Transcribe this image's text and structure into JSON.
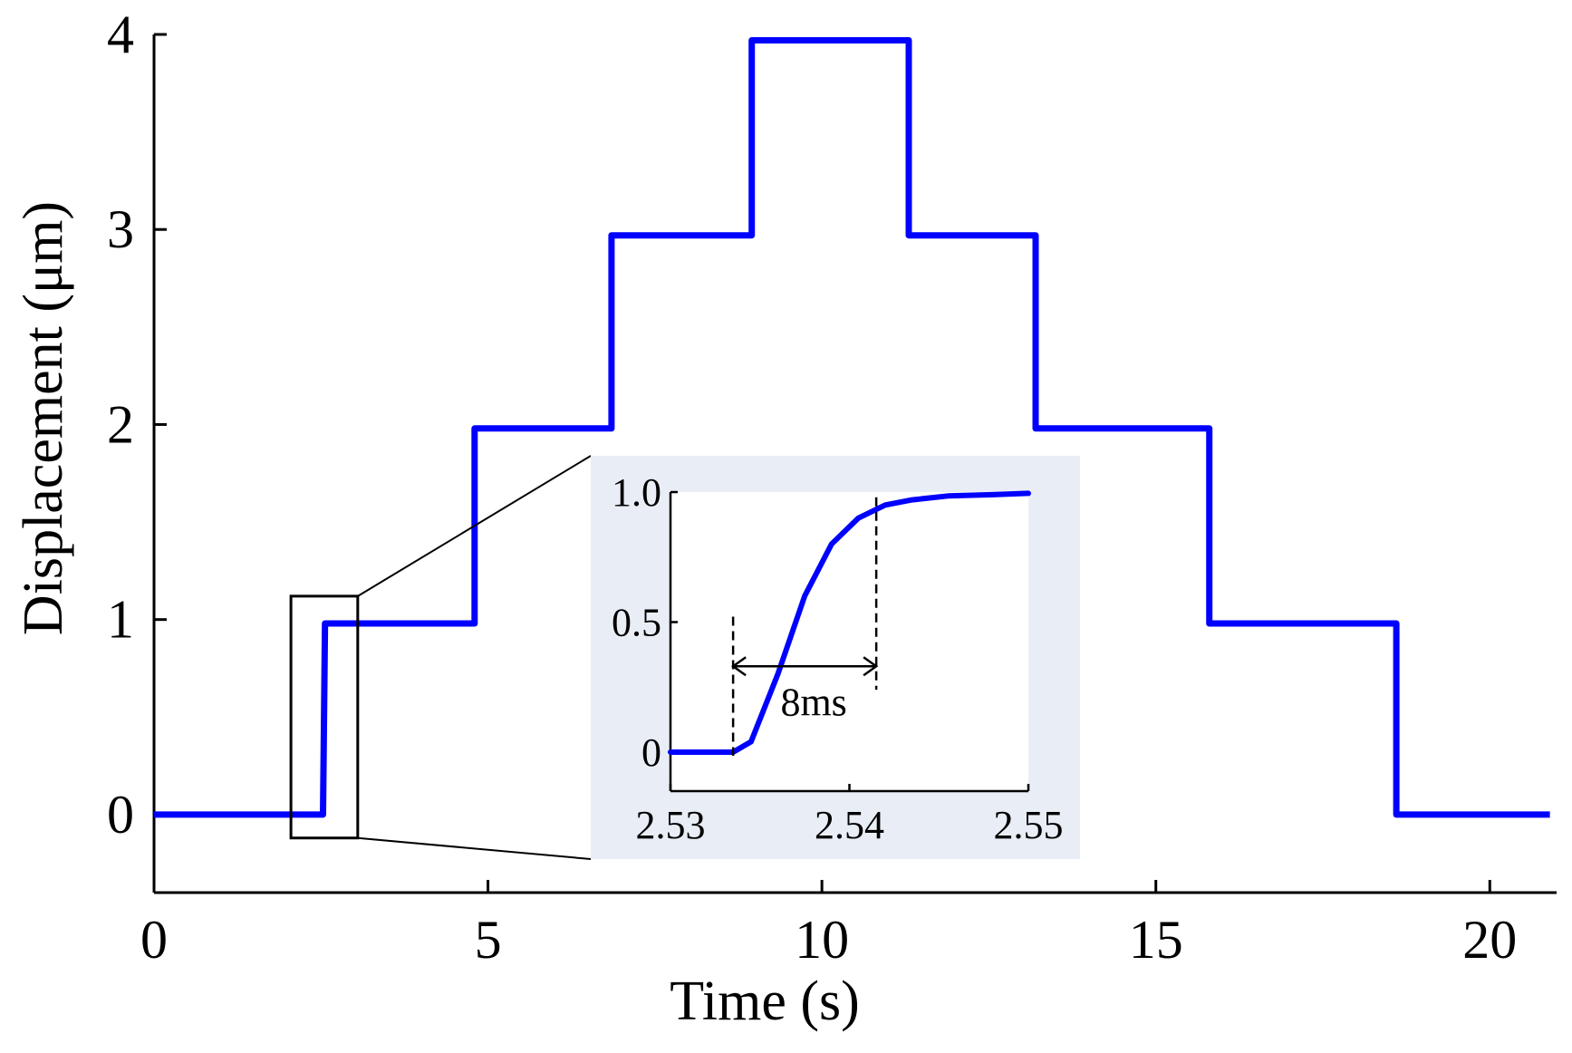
{
  "chart_data": [
    {
      "type": "line",
      "title": "",
      "xlabel": "Time (s)",
      "ylabel": "Displacement (μm)",
      "xlim": [
        0,
        21
      ],
      "ylim": [
        -0.4,
        4
      ],
      "xticks": [
        0,
        5,
        10,
        15,
        20
      ],
      "yticks": [
        0,
        1,
        2,
        3,
        4
      ],
      "grid": false,
      "color": "#0000ff",
      "series": [
        {
          "x": [
            0,
            2.53,
            2.56,
            4.8,
            4.8,
            6.85,
            6.85,
            8.95,
            8.95,
            11.3,
            11.3,
            13.2,
            13.2,
            15.8,
            15.8,
            18.6,
            18.6,
            20.9
          ],
          "y": [
            0,
            0,
            0.98,
            0.98,
            1.98,
            1.98,
            2.97,
            2.97,
            3.97,
            3.97,
            2.97,
            2.97,
            1.98,
            1.98,
            0.98,
            0.98,
            0,
            0
          ]
        }
      ],
      "zoom_box": {
        "x": [
          2.05,
          3.05
        ],
        "y": [
          -0.12,
          1.12
        ]
      }
    },
    {
      "type": "line",
      "title": "",
      "xlabel": "",
      "ylabel": "",
      "xlim": [
        2.53,
        2.55
      ],
      "ylim": [
        -0.15,
        1.0
      ],
      "xticks": [
        2.53,
        2.54,
        2.55
      ],
      "xtick_labels": [
        "2.53",
        "2.54",
        "2.55"
      ],
      "yticks": [
        0,
        0.5,
        1.0
      ],
      "ytick_labels": [
        "0",
        "0.5",
        "1.0"
      ],
      "background": "#e9eef6",
      "color": "#0000ff",
      "series": [
        {
          "x": [
            2.53,
            2.5335,
            2.5345,
            2.536,
            2.5375,
            2.539,
            2.5405,
            2.542,
            2.5435,
            2.5455,
            2.548,
            2.55
          ],
          "y": [
            0,
            0,
            0.04,
            0.3,
            0.6,
            0.8,
            0.9,
            0.95,
            0.97,
            0.985,
            0.99,
            0.995
          ]
        }
      ],
      "annotation": {
        "label": "8ms",
        "x_start": 2.5335,
        "x_end": 2.5415,
        "y": 0.33
      }
    }
  ]
}
